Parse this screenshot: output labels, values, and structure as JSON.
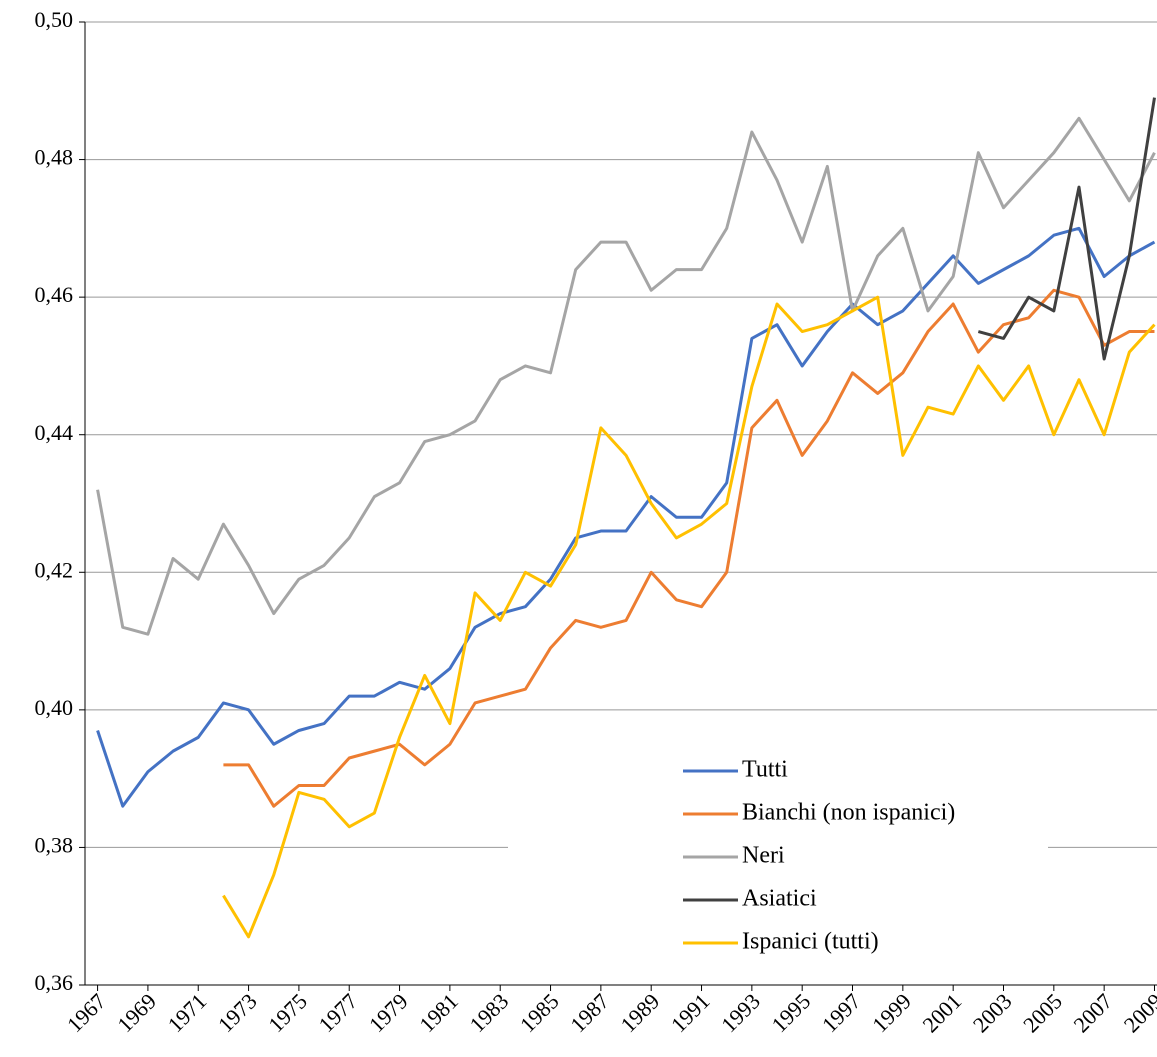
{
  "chart_data": {
    "type": "line",
    "x": [
      1967,
      1968,
      1969,
      1970,
      1971,
      1972,
      1973,
      1974,
      1975,
      1976,
      1977,
      1978,
      1979,
      1980,
      1981,
      1982,
      1983,
      1984,
      1985,
      1986,
      1987,
      1988,
      1989,
      1990,
      1991,
      1992,
      1993,
      1994,
      1995,
      1996,
      1997,
      1998,
      1999,
      2000,
      2001,
      2002,
      2003,
      2004,
      2005,
      2006,
      2007,
      2008,
      2009
    ],
    "xlim": [
      1966.5,
      2009.1
    ],
    "xticks": [
      1967,
      1969,
      1971,
      1973,
      1975,
      1977,
      1979,
      1981,
      1983,
      1985,
      1987,
      1989,
      1991,
      1993,
      1995,
      1997,
      1999,
      2001,
      2003,
      2005,
      2007,
      2009
    ],
    "ylim": [
      0.36,
      0.5
    ],
    "yticks": [
      {
        "value": 0.36,
        "label": "0,36"
      },
      {
        "value": 0.38,
        "label": "0,38"
      },
      {
        "value": 0.4,
        "label": "0,40"
      },
      {
        "value": 0.42,
        "label": "0,42"
      },
      {
        "value": 0.44,
        "label": "0,44"
      },
      {
        "value": 0.46,
        "label": "0,46"
      },
      {
        "value": 0.48,
        "label": "0,48"
      },
      {
        "value": 0.5,
        "label": "0,50"
      }
    ],
    "grid": true,
    "legend": "lower-right",
    "series": [
      {
        "name": "Tutti",
        "color": "#4472c4",
        "values": [
          0.397,
          0.386,
          0.391,
          0.394,
          0.396,
          0.401,
          0.4,
          0.395,
          0.397,
          0.398,
          0.402,
          0.402,
          0.404,
          0.403,
          0.406,
          0.412,
          0.414,
          0.415,
          0.419,
          0.425,
          0.426,
          0.426,
          0.431,
          0.428,
          0.428,
          0.433,
          0.454,
          0.456,
          0.45,
          0.455,
          0.459,
          0.456,
          0.458,
          0.462,
          0.466,
          0.462,
          0.464,
          0.466,
          0.469,
          0.47,
          0.463,
          0.466,
          0.468
        ]
      },
      {
        "name": "Bianchi (non ispanici)",
        "color": "#ed7d31",
        "values": [
          null,
          null,
          null,
          null,
          null,
          0.392,
          0.392,
          0.386,
          0.389,
          0.389,
          0.393,
          0.394,
          0.395,
          0.392,
          0.395,
          0.401,
          0.402,
          0.403,
          0.409,
          0.413,
          0.412,
          0.413,
          0.42,
          0.416,
          0.415,
          0.42,
          0.441,
          0.445,
          0.437,
          0.442,
          0.449,
          0.446,
          0.449,
          0.455,
          0.459,
          0.452,
          0.456,
          0.457,
          0.461,
          0.46,
          0.453,
          0.455,
          0.455
        ]
      },
      {
        "name": "Neri",
        "color": "#a5a5a5",
        "values": [
          0.432,
          0.412,
          0.411,
          0.422,
          0.419,
          0.427,
          0.421,
          0.414,
          0.419,
          0.421,
          0.425,
          0.431,
          0.433,
          0.439,
          0.44,
          0.442,
          0.448,
          0.45,
          0.449,
          0.464,
          0.468,
          0.468,
          0.461,
          0.464,
          0.464,
          0.47,
          0.484,
          0.477,
          0.468,
          0.479,
          0.458,
          0.466,
          0.47,
          0.458,
          0.463,
          0.481,
          0.473,
          0.477,
          0.481,
          0.486,
          0.48,
          0.474,
          0.481
        ]
      },
      {
        "name": "Asiatici",
        "color": "#404040",
        "values": [
          null,
          null,
          null,
          null,
          null,
          null,
          null,
          null,
          null,
          null,
          null,
          null,
          null,
          null,
          null,
          null,
          null,
          null,
          null,
          null,
          null,
          null,
          null,
          null,
          null,
          null,
          null,
          null,
          null,
          null,
          null,
          null,
          null,
          null,
          null,
          0.455,
          0.454,
          0.46,
          0.458,
          0.476,
          0.451,
          0.466,
          0.489
        ]
      },
      {
        "name": "Ispanici (tutti)",
        "color": "#ffc000",
        "values": [
          null,
          null,
          null,
          null,
          null,
          0.373,
          0.367,
          0.376,
          0.388,
          0.387,
          0.383,
          0.385,
          0.396,
          0.405,
          0.398,
          0.417,
          0.413,
          0.42,
          0.418,
          0.424,
          0.441,
          0.437,
          0.43,
          0.425,
          0.427,
          0.43,
          0.447,
          0.459,
          0.455,
          0.456,
          0.458,
          0.46,
          0.437,
          0.444,
          0.443,
          0.45,
          0.445,
          0.45,
          0.44,
          0.448,
          0.44,
          0.452,
          0.456
        ]
      }
    ]
  }
}
